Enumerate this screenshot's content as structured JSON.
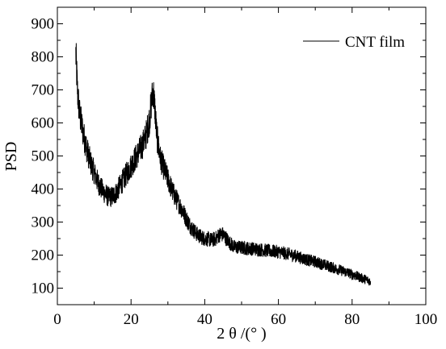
{
  "chart_data": {
    "type": "line",
    "title": "",
    "xlabel": "2 θ /(°   )",
    "ylabel": "PSD",
    "xlim": [
      0,
      100
    ],
    "ylim": [
      50,
      950
    ],
    "x_ticks": [
      0,
      20,
      40,
      60,
      80,
      100
    ],
    "x_tick_labels": [
      "0",
      "20",
      "40",
      "60",
      "80",
      "100"
    ],
    "y_ticks": [
      100,
      200,
      300,
      400,
      500,
      600,
      700,
      800,
      900
    ],
    "y_tick_labels": [
      "100",
      "200",
      "300",
      "400",
      "500",
      "600",
      "700",
      "800",
      "900"
    ],
    "grid": false,
    "legend_position": "top-right",
    "series": [
      {
        "name": "CNT film",
        "color": "#000000",
        "x": [
          5,
          5.5,
          6,
          7,
          8,
          9,
          10,
          11,
          12,
          13,
          14,
          15,
          16,
          17,
          18,
          19,
          20,
          21,
          22,
          23,
          24,
          25,
          25.5,
          26,
          26.5,
          27,
          28,
          29,
          30,
          31,
          32,
          33,
          34,
          35,
          36,
          37,
          38,
          39,
          40,
          41,
          42,
          43,
          44,
          45,
          46,
          47,
          48,
          50,
          52,
          54,
          56,
          58,
          60,
          62,
          64,
          66,
          68,
          70,
          72,
          74,
          76,
          78,
          80,
          82,
          84,
          85
        ],
        "y": [
          810,
          690,
          630,
          570,
          520,
          480,
          450,
          420,
          400,
          385,
          375,
          378,
          390,
          410,
          430,
          450,
          470,
          490,
          510,
          530,
          560,
          610,
          660,
          700,
          640,
          560,
          490,
          460,
          430,
          400,
          375,
          355,
          335,
          310,
          290,
          275,
          262,
          255,
          250,
          248,
          245,
          250,
          262,
          262,
          248,
          235,
          225,
          222,
          220,
          218,
          215,
          212,
          210,
          205,
          200,
          192,
          185,
          180,
          172,
          165,
          157,
          150,
          142,
          133,
          125,
          120
        ]
      }
    ]
  }
}
